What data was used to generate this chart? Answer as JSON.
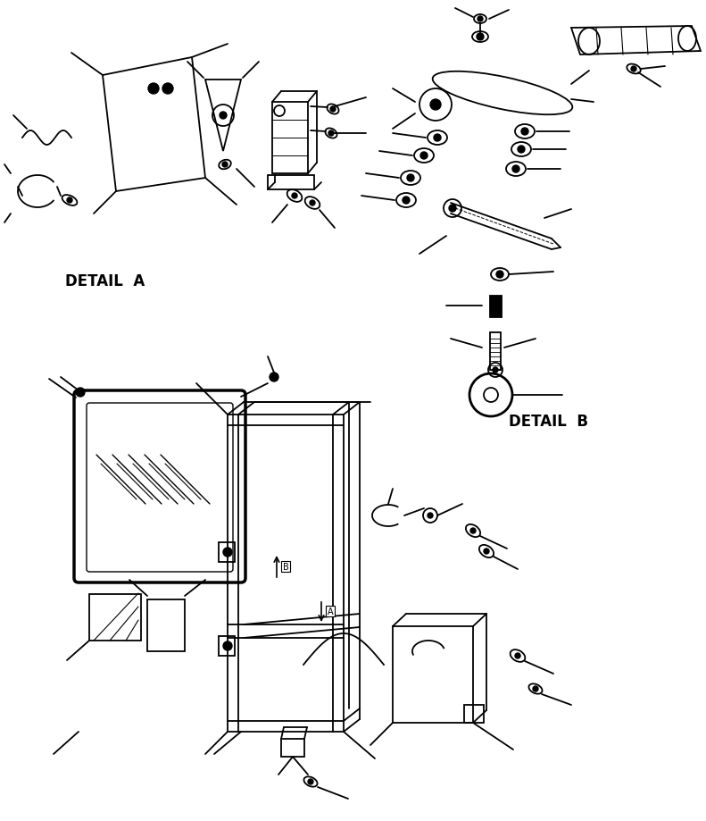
{
  "bg_color": "#ffffff",
  "line_color": "#000000",
  "text_color": "#000000",
  "detail_a_label": "DETAIL  A",
  "detail_b_label": "DETAIL  B",
  "label_fontsize": 12,
  "figsize": [
    7.91,
    9.2
  ],
  "dpi": 100
}
